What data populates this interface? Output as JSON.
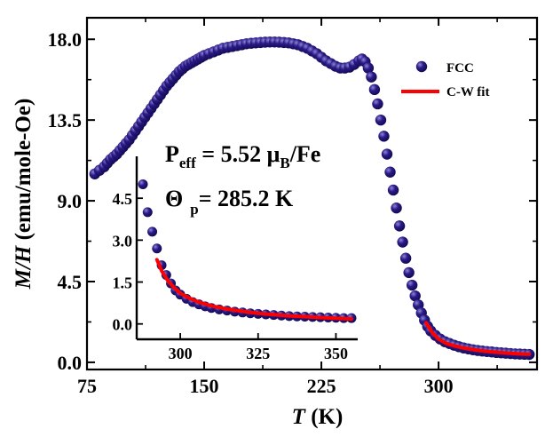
{
  "chart_data": {
    "type": "scatter",
    "xlabel_var": "T",
    "xlabel_unit": " (K)",
    "ylabel_var": "M/H",
    "ylabel_unit": " (emu/mole-Oe)",
    "xlim": [
      75,
      363
    ],
    "ylim": [
      -0.4,
      19.2
    ],
    "xticks": [
      75,
      150,
      225,
      300
    ],
    "xtick_labels": [
      "75",
      "150",
      "225",
      "300"
    ],
    "yticks": [
      0,
      4.5,
      9,
      13.5,
      18
    ],
    "ytick_labels": [
      "0.0",
      "4.5",
      "9.0",
      "13.5",
      "18.0"
    ],
    "series": [
      {
        "name": "FCC",
        "kind": "points",
        "color": "#2a1a86",
        "x": [
          80,
          83,
          86,
          88,
          90,
          92,
          94,
          96,
          98,
          100,
          102,
          104,
          106,
          108,
          110,
          112,
          114,
          116,
          118,
          120,
          122,
          124,
          126,
          128,
          130,
          132,
          134,
          136,
          138,
          140,
          142,
          144,
          146,
          148,
          150,
          153,
          156,
          159,
          162,
          165,
          168,
          171,
          174,
          177,
          180,
          183,
          186,
          189,
          192,
          195,
          198,
          201,
          204,
          207,
          210,
          213,
          216,
          219,
          222,
          225,
          228,
          231,
          234,
          237,
          240,
          243,
          246,
          249,
          251,
          253,
          255,
          257,
          259,
          261,
          263,
          265,
          267,
          269,
          271,
          273,
          275,
          277,
          279,
          281,
          283,
          285,
          287,
          289,
          291,
          293,
          295,
          298,
          301,
          304,
          307,
          310,
          313,
          316,
          319,
          322,
          325,
          328,
          331,
          334,
          337,
          340,
          343,
          346,
          349,
          352,
          355,
          358
        ],
        "y": [
          10.5,
          10.7,
          10.9,
          11.1,
          11.3,
          11.45,
          11.6,
          11.8,
          12.0,
          12.2,
          12.4,
          12.65,
          12.9,
          13.15,
          13.4,
          13.65,
          13.9,
          14.15,
          14.4,
          14.65,
          14.9,
          15.15,
          15.4,
          15.6,
          15.8,
          16.0,
          16.2,
          16.35,
          16.5,
          16.6,
          16.7,
          16.8,
          16.9,
          17.0,
          17.1,
          17.2,
          17.3,
          17.4,
          17.5,
          17.55,
          17.6,
          17.65,
          17.7,
          17.75,
          17.78,
          17.8,
          17.82,
          17.84,
          17.85,
          17.85,
          17.84,
          17.82,
          17.8,
          17.75,
          17.7,
          17.6,
          17.5,
          17.35,
          17.2,
          17.0,
          16.8,
          16.65,
          16.5,
          16.4,
          16.4,
          16.45,
          16.6,
          16.8,
          16.9,
          16.75,
          16.4,
          15.9,
          15.2,
          14.4,
          13.5,
          12.6,
          11.6,
          10.6,
          9.6,
          8.6,
          7.6,
          6.7,
          5.8,
          5.0,
          4.3,
          3.7,
          3.2,
          2.75,
          2.35,
          2.0,
          1.75,
          1.5,
          1.3,
          1.15,
          1.05,
          0.95,
          0.87,
          0.8,
          0.75,
          0.7,
          0.66,
          0.63,
          0.6,
          0.58,
          0.55,
          0.53,
          0.51,
          0.49,
          0.47,
          0.46,
          0.45,
          0.44
        ]
      },
      {
        "name": "C-W fit",
        "kind": "line",
        "color": "#ff0000",
        "x": [
          292,
          296,
          300,
          305,
          310,
          315,
          320,
          325,
          330,
          335,
          340,
          345,
          350,
          355,
          358
        ],
        "y": [
          2.2,
          1.65,
          1.3,
          1.05,
          0.92,
          0.82,
          0.74,
          0.67,
          0.62,
          0.58,
          0.54,
          0.51,
          0.48,
          0.46,
          0.45
        ]
      }
    ],
    "legend_position": "top-right",
    "annotations": {
      "peff_main": "P",
      "peff_sub": "eff",
      "peff_eq": " = 5.52 ",
      "peff_mu": "μ",
      "peff_mu_sub": "B",
      "peff_tail": "/Fe",
      "theta_main": "Θ",
      "theta_sub": "p",
      "theta_eq": "= 285.2 K"
    },
    "inset": {
      "type": "scatter",
      "xlim": [
        286,
        357
      ],
      "ylim": [
        -0.55,
        6.0
      ],
      "xticks": [
        300,
        325,
        350
      ],
      "xtick_labels": [
        "300",
        "325",
        "350"
      ],
      "yticks": [
        0,
        1.5,
        3.0,
        4.5
      ],
      "ytick_labels": [
        "0.0",
        "1.5",
        "3.0",
        "4.5"
      ],
      "points": {
        "name": "FCC",
        "color": "#2a1a86",
        "x": [
          288,
          289.5,
          291,
          292.5,
          294,
          295.5,
          297,
          298.5,
          300,
          302,
          304,
          306,
          308,
          310,
          312.5,
          315,
          317.5,
          320,
          322.5,
          325,
          327.5,
          330,
          332.5,
          335,
          337.5,
          340,
          342.5,
          345,
          347.5,
          350,
          352.5,
          355
        ],
        "y": [
          5.0,
          4.0,
          3.3,
          2.7,
          2.1,
          1.75,
          1.45,
          1.2,
          1.05,
          0.9,
          0.78,
          0.7,
          0.63,
          0.57,
          0.52,
          0.48,
          0.44,
          0.41,
          0.38,
          0.36,
          0.34,
          0.32,
          0.3,
          0.28,
          0.27,
          0.26,
          0.25,
          0.24,
          0.23,
          0.22,
          0.21,
          0.21
        ]
      },
      "fit": {
        "name": "C-W fit",
        "color": "#ff0000",
        "x": [
          292.5,
          294,
          296,
          298,
          300,
          303,
          306,
          310,
          315,
          320,
          325,
          330,
          335,
          340,
          345,
          350,
          355
        ],
        "y": [
          2.3,
          1.9,
          1.55,
          1.3,
          1.1,
          0.92,
          0.78,
          0.65,
          0.53,
          0.45,
          0.38,
          0.33,
          0.29,
          0.26,
          0.23,
          0.2,
          0.18
        ]
      }
    }
  }
}
